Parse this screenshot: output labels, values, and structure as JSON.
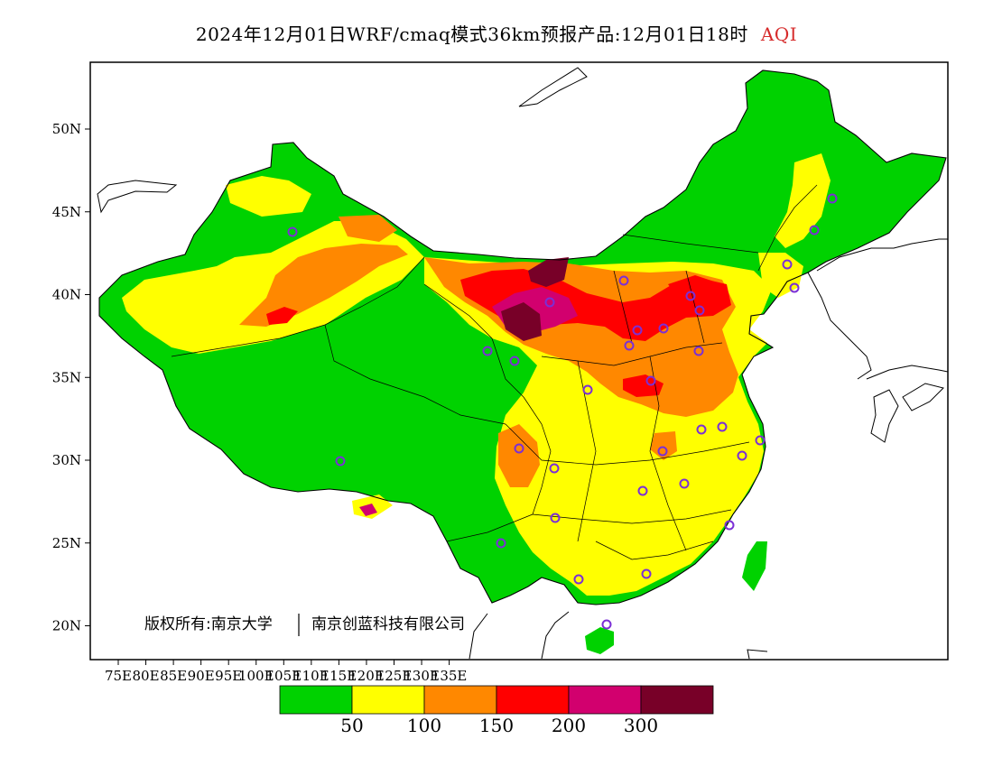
{
  "title": {
    "main": "2024年12月01日WRF/cmaq模式36km预报产品:12月01日18时",
    "variable": "AQI",
    "variable_color": "#d62a2a"
  },
  "axes": {
    "lon_labels": [
      "75E",
      "80E",
      "85E",
      "90E",
      "95E",
      "100E",
      "105E",
      "110E",
      "115E",
      "120E",
      "125E",
      "130E",
      "135E"
    ],
    "lat_labels": [
      "50N",
      "45N",
      "40N",
      "35N",
      "30N",
      "25N",
      "20N"
    ]
  },
  "copyright": {
    "text": "版权所有:南京大学",
    "text2": "南京创蓝科技有限公司"
  },
  "legend": {
    "colors": [
      "#00d200",
      "#ffff00",
      "#ff8800",
      "#ff0000",
      "#d2006e",
      "#780028"
    ],
    "labels": [
      "50",
      "100",
      "150",
      "200",
      "300"
    ]
  },
  "city_marker_color": "#7b2fd6"
}
